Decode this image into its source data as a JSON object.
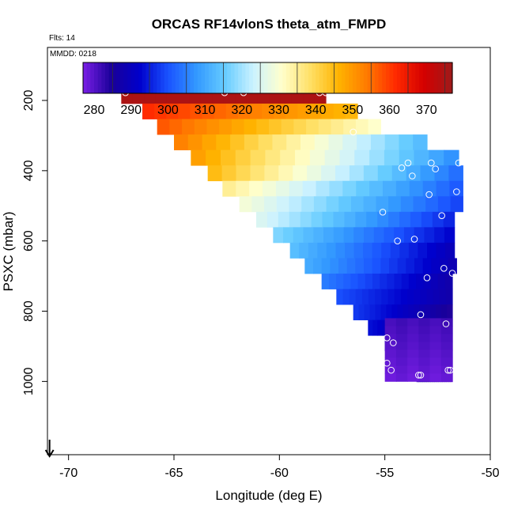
{
  "chart_data": {
    "type": "heatmap",
    "title": "ORCAS RF14vlonS theta_atm_FMPD",
    "annotations": {
      "flights": "Flts: 14",
      "date": "MMDD: 0218"
    },
    "xlabel": "Longitude (deg E)",
    "ylabel": "PSXC (mbar)",
    "xlim": [
      -71,
      -50
    ],
    "ylim": [
      1000,
      0
    ],
    "x_ticks": [
      -70,
      -65,
      -60,
      -55,
      -50
    ],
    "x_tick_labels": [
      "-70",
      "-65",
      "-60",
      "-55",
      "-50"
    ],
    "y_ticks": [
      200,
      400,
      600,
      800,
      1000
    ],
    "y_tick_labels": [
      "200",
      "400",
      "600",
      "800",
      "1000"
    ],
    "colorbar": {
      "min": 277,
      "max": 377,
      "ticks": [
        280,
        290,
        300,
        310,
        320,
        330,
        340,
        350,
        360,
        370
      ],
      "tick_labels": [
        "280",
        "290",
        "300",
        "310",
        "320",
        "330",
        "340",
        "350",
        "360",
        "370"
      ],
      "colors": [
        "#7a1fe6",
        "#1a0099",
        "#0000cc",
        "#1a53ff",
        "#3399ff",
        "#66ccff",
        "#ccf2ff",
        "#ffffcc",
        "#ffe066",
        "#ffb300",
        "#ff7a00",
        "#ff2a00",
        "#d40000",
        "#9e1a1a"
      ]
    },
    "cell_height_mbar": 44,
    "rows": [
      {
        "p": 187,
        "x0": -67.5,
        "x1": -57.8,
        "v0": 375,
        "v1": 375
      },
      {
        "p": 231,
        "x0": -66.5,
        "x1": -56.3,
        "v0": 362,
        "v1": 345
      },
      {
        "p": 275,
        "x0": -65.8,
        "x1": -55.2,
        "v0": 358,
        "v1": 330
      },
      {
        "p": 319,
        "x0": -65.0,
        "x1": -53.0,
        "v0": 354,
        "v1": 312
      },
      {
        "p": 363,
        "x0": -64.2,
        "x1": -51.5,
        "v0": 350,
        "v1": 306
      },
      {
        "p": 407,
        "x0": -63.4,
        "x1": -51.3,
        "v0": 346,
        "v1": 302
      },
      {
        "p": 451,
        "x0": -62.7,
        "x1": -51.3,
        "v0": 336,
        "v1": 300
      },
      {
        "p": 495,
        "x0": -61.9,
        "x1": -51.3,
        "v0": 330,
        "v1": 298
      },
      {
        "p": 539,
        "x0": -61.1,
        "x1": -51.7,
        "v0": 326,
        "v1": 295
      },
      {
        "p": 583,
        "x0": -60.3,
        "x1": -51.7,
        "v0": 318,
        "v1": 292
      },
      {
        "p": 627,
        "x0": -59.5,
        "x1": -51.7,
        "v0": 314,
        "v1": 289
      },
      {
        "p": 671,
        "x0": -58.8,
        "x1": -51.6,
        "v0": 311,
        "v1": 288
      },
      {
        "p": 715,
        "x0": -58.0,
        "x1": -51.8,
        "v0": 305,
        "v1": 287
      },
      {
        "p": 759,
        "x0": -57.3,
        "x1": -51.8,
        "v0": 300,
        "v1": 287
      },
      {
        "p": 803,
        "x0": -56.5,
        "x1": -51.8,
        "v0": 298,
        "v1": 284
      },
      {
        "p": 847,
        "x0": -55.8,
        "x1": -51.8,
        "v0": 294,
        "v1": 282
      },
      {
        "p": 891,
        "x0": -55.0,
        "x1": -51.8,
        "v0": 291,
        "v1": 281
      },
      {
        "p": 935,
        "x0": -54.3,
        "x1": -51.8,
        "v0": 288,
        "v1": 280
      },
      {
        "p": 979,
        "x0": -53.5,
        "x1": -51.8,
        "v0": 286,
        "v1": 279
      }
    ],
    "purple_zone": {
      "x0": -55.0,
      "x1": -51.8,
      "p0": 820,
      "p1": 1000
    },
    "circles": [
      {
        "lon": -67.3,
        "p": 178
      },
      {
        "lon": -62.6,
        "p": 178
      },
      {
        "lon": -61.7,
        "p": 178
      },
      {
        "lon": -58.1,
        "p": 178
      },
      {
        "lon": -57.8,
        "p": 178
      },
      {
        "lon": -56.5,
        "p": 290
      },
      {
        "lon": -53.9,
        "p": 378
      },
      {
        "lon": -54.2,
        "p": 392
      },
      {
        "lon": -53.7,
        "p": 415
      },
      {
        "lon": -52.8,
        "p": 378
      },
      {
        "lon": -52.6,
        "p": 395
      },
      {
        "lon": -51.5,
        "p": 378
      },
      {
        "lon": -51.6,
        "p": 460
      },
      {
        "lon": -52.9,
        "p": 468
      },
      {
        "lon": -55.1,
        "p": 518
      },
      {
        "lon": -52.3,
        "p": 528
      },
      {
        "lon": -54.4,
        "p": 600
      },
      {
        "lon": -53.6,
        "p": 595
      },
      {
        "lon": -52.2,
        "p": 678
      },
      {
        "lon": -51.8,
        "p": 692
      },
      {
        "lon": -53.0,
        "p": 705
      },
      {
        "lon": -53.3,
        "p": 810
      },
      {
        "lon": -52.1,
        "p": 836
      },
      {
        "lon": -54.9,
        "p": 876
      },
      {
        "lon": -54.6,
        "p": 890
      },
      {
        "lon": -54.9,
        "p": 948
      },
      {
        "lon": -54.7,
        "p": 968
      },
      {
        "lon": -53.4,
        "p": 982
      },
      {
        "lon": -53.3,
        "p": 982
      },
      {
        "lon": -52.0,
        "p": 968
      },
      {
        "lon": -51.9,
        "p": 968
      }
    ],
    "arrow_lon": -70.9
  }
}
